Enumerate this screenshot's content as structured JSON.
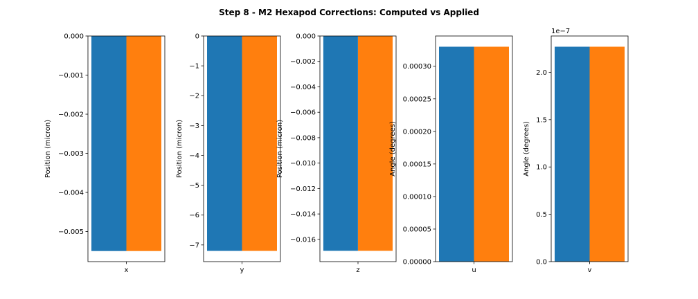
{
  "figure": {
    "title": "Step 8 - M2 Hexapod Corrections: Computed vs Applied"
  },
  "colors": {
    "computed": "#1f77b4",
    "applied": "#ff7f0e"
  },
  "chart_data": [
    {
      "type": "bar",
      "categories": [
        "x"
      ],
      "series": [
        {
          "values": [
            -0.0055
          ]
        },
        {
          "values": [
            -0.0055
          ]
        }
      ],
      "xlabel": "x",
      "ylabel": "Position (micron)",
      "ylim": [
        -0.00577,
        0.0
      ],
      "yticks": [
        0.0,
        -0.001,
        -0.002,
        -0.003,
        -0.004,
        -0.005
      ],
      "ytick_labels": [
        "0.000",
        "−0.001",
        "−0.002",
        "−0.003",
        "−0.004",
        "−0.005"
      ],
      "offset_label": ""
    },
    {
      "type": "bar",
      "categories": [
        "y"
      ],
      "series": [
        {
          "values": [
            -7.2
          ]
        },
        {
          "values": [
            -7.2
          ]
        }
      ],
      "xlabel": "y",
      "ylabel": "Position (micron)",
      "ylim": [
        -7.56,
        0.0
      ],
      "yticks": [
        0,
        -1,
        -2,
        -3,
        -4,
        -5,
        -6,
        -7
      ],
      "ytick_labels": [
        "0",
        "−1",
        "−2",
        "−3",
        "−4",
        "−5",
        "−6",
        "−7"
      ],
      "offset_label": ""
    },
    {
      "type": "bar",
      "categories": [
        "z"
      ],
      "series": [
        {
          "values": [
            -0.0169
          ]
        },
        {
          "values": [
            -0.0169
          ]
        }
      ],
      "xlabel": "z",
      "ylabel": "Position (micron)",
      "ylim": [
        -0.01775,
        0.0
      ],
      "yticks": [
        0.0,
        -0.002,
        -0.004,
        -0.006,
        -0.008,
        -0.01,
        -0.012,
        -0.014,
        -0.016
      ],
      "ytick_labels": [
        "0.000",
        "−0.002",
        "−0.004",
        "−0.006",
        "−0.008",
        "−0.010",
        "−0.012",
        "−0.014",
        "−0.016"
      ],
      "offset_label": ""
    },
    {
      "type": "bar",
      "categories": [
        "u"
      ],
      "series": [
        {
          "values": [
            0.00033
          ]
        },
        {
          "values": [
            0.00033
          ]
        }
      ],
      "xlabel": "u",
      "ylabel": "Angle (degrees)",
      "ylim": [
        0.0,
        0.0003465
      ],
      "yticks": [
        0.0,
        5e-05,
        0.0001,
        0.00015,
        0.0002,
        0.00025,
        0.0003
      ],
      "ytick_labels": [
        "0.00000",
        "0.00005",
        "0.00010",
        "0.00015",
        "0.00020",
        "0.00025",
        "0.00030"
      ],
      "offset_label": ""
    },
    {
      "type": "bar",
      "categories": [
        "v"
      ],
      "series": [
        {
          "values": [
            2.27e-07
          ]
        },
        {
          "values": [
            2.27e-07
          ]
        }
      ],
      "xlabel": "v",
      "ylabel": "Angle (degrees)",
      "ylim": [
        0.0,
        2.3835e-07
      ],
      "yticks": [
        0.0,
        5e-08,
        1e-07,
        1.5e-07,
        2e-07
      ],
      "ytick_labels": [
        "0.0",
        "0.5",
        "1.0",
        "1.5",
        "2.0"
      ],
      "offset_label": "1e−7"
    }
  ]
}
